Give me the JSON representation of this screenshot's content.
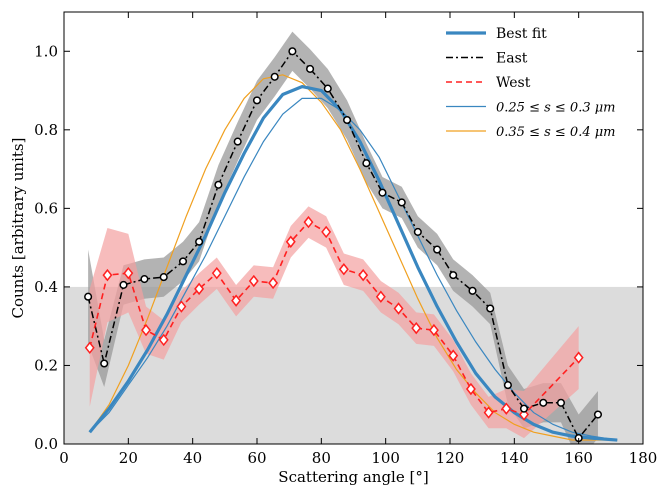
{
  "chart_data": {
    "type": "line",
    "title": "",
    "xlabel": "Scattering angle [°]",
    "ylabel": "Counts [arbitrary units]",
    "xlim": [
      0,
      180
    ],
    "ylim": [
      0,
      1.1
    ],
    "xticks": [
      0,
      20,
      40,
      60,
      80,
      100,
      120,
      140,
      160,
      180
    ],
    "xtick_labels": [
      "0",
      "20",
      "40",
      "60",
      "80",
      "100",
      "120",
      "140",
      "160",
      "180"
    ],
    "yticks": [
      0,
      0.2,
      0.4,
      0.6,
      0.8,
      1.0
    ],
    "ytick_labels": [
      "0.0",
      "0.2",
      "0.4",
      "0.6",
      "0.8",
      "1.0"
    ],
    "grid": false,
    "legend_position": "top-right",
    "shaded_region": {
      "y_from": 0,
      "y_to": 0.4,
      "color": "#dcdcdc"
    },
    "colors": {
      "best_fit": "#3a87c0",
      "east": "#000000",
      "west": "#ff2020",
      "west_band": "#f4a0a0",
      "east_band": "#9a9a9a",
      "small_grains": "#3a87c0",
      "large_grains": "#f0a020"
    },
    "series": [
      {
        "name": "Best fit",
        "style": "solid-thick",
        "x": [
          8,
          14,
          20,
          26,
          32,
          38,
          44,
          50,
          56,
          62,
          68,
          74,
          80,
          86,
          92,
          98,
          104,
          110,
          116,
          122,
          128,
          134,
          140,
          146,
          152,
          158,
          164,
          172
        ],
        "y": [
          0.03,
          0.09,
          0.16,
          0.24,
          0.33,
          0.43,
          0.53,
          0.64,
          0.74,
          0.83,
          0.89,
          0.91,
          0.9,
          0.85,
          0.77,
          0.67,
          0.56,
          0.45,
          0.35,
          0.26,
          0.18,
          0.12,
          0.08,
          0.05,
          0.03,
          0.02,
          0.015,
          0.01
        ]
      },
      {
        "name": "East",
        "style": "dash-dot-markers",
        "x": [
          7.5,
          12.5,
          18.5,
          25,
          31,
          37,
          42,
          48,
          54,
          60,
          65.5,
          71,
          76.5,
          82,
          88,
          94,
          99,
          105,
          110,
          116,
          121,
          127,
          132.5,
          138,
          143,
          149,
          154.5,
          160,
          166
        ],
        "y": [
          0.375,
          0.205,
          0.405,
          0.42,
          0.425,
          0.465,
          0.515,
          0.66,
          0.77,
          0.875,
          0.935,
          1.0,
          0.955,
          0.905,
          0.825,
          0.715,
          0.64,
          0.615,
          0.54,
          0.495,
          0.43,
          0.39,
          0.345,
          0.15,
          0.09,
          0.105,
          0.105,
          0.015,
          0.075
        ],
        "err": [
          0.12,
          0.06,
          0.05,
          0.05,
          0.05,
          0.05,
          0.05,
          0.05,
          0.05,
          0.05,
          0.05,
          0.05,
          0.05,
          0.05,
          0.05,
          0.05,
          0.04,
          0.04,
          0.04,
          0.04,
          0.04,
          0.04,
          0.04,
          0.05,
          0.05,
          0.05,
          0.05,
          0.06,
          0.06
        ]
      },
      {
        "name": "West",
        "style": "dashed-markers",
        "x": [
          8,
          13.5,
          20,
          25.5,
          31,
          36.5,
          42,
          47.5,
          53.5,
          59,
          65,
          70.5,
          76,
          81.5,
          87,
          93,
          98.5,
          104,
          109.5,
          115,
          121,
          126.5,
          132,
          137.5,
          143,
          160
        ],
        "y": [
          0.245,
          0.43,
          0.435,
          0.29,
          0.265,
          0.35,
          0.395,
          0.435,
          0.365,
          0.415,
          0.41,
          0.515,
          0.565,
          0.54,
          0.445,
          0.43,
          0.375,
          0.345,
          0.295,
          0.29,
          0.225,
          0.14,
          0.08,
          0.09,
          0.075,
          0.22
        ],
        "err": [
          0.15,
          0.12,
          0.1,
          0.06,
          0.05,
          0.04,
          0.04,
          0.04,
          0.04,
          0.04,
          0.04,
          0.04,
          0.04,
          0.04,
          0.04,
          0.04,
          0.04,
          0.04,
          0.04,
          0.04,
          0.04,
          0.04,
          0.04,
          0.05,
          0.06,
          0.08
        ]
      },
      {
        "name": "0.25 ≤ s ≤ 0.3 μm",
        "style": "solid-thin",
        "x": [
          8,
          14,
          20,
          26,
          32,
          38,
          44,
          50,
          56,
          62,
          68,
          74,
          80,
          86,
          92,
          98,
          104,
          110,
          116,
          122,
          128,
          134,
          140,
          146,
          152,
          158,
          164,
          172
        ],
        "y": [
          0.03,
          0.08,
          0.15,
          0.22,
          0.3,
          0.39,
          0.48,
          0.58,
          0.68,
          0.77,
          0.84,
          0.88,
          0.88,
          0.85,
          0.8,
          0.73,
          0.63,
          0.53,
          0.43,
          0.34,
          0.26,
          0.19,
          0.13,
          0.08,
          0.05,
          0.03,
          0.02,
          0.01
        ]
      },
      {
        "name": "0.35 ≤ s ≤ 0.4 μm",
        "style": "solid-thin",
        "x": [
          8,
          14,
          20,
          26,
          32,
          38,
          44,
          50,
          56,
          62,
          68,
          74,
          80,
          86,
          92,
          98,
          104,
          110,
          116,
          122,
          128,
          134,
          140,
          146,
          152,
          158,
          164,
          172
        ],
        "y": [
          0.03,
          0.1,
          0.2,
          0.32,
          0.45,
          0.58,
          0.7,
          0.8,
          0.88,
          0.93,
          0.94,
          0.92,
          0.87,
          0.8,
          0.7,
          0.59,
          0.48,
          0.37,
          0.27,
          0.19,
          0.13,
          0.08,
          0.05,
          0.03,
          0.02,
          0.01,
          0.01,
          0.01
        ]
      }
    ]
  }
}
